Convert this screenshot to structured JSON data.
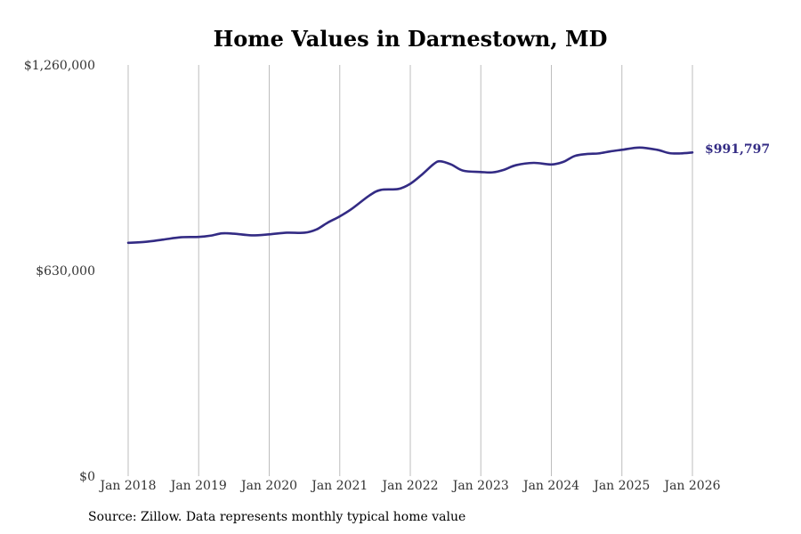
{
  "chart_data": {
    "type": "line",
    "title": "Home Values in Darnestown, MD",
    "xlabel": "",
    "ylabel": "",
    "ylim": [
      0,
      1260000
    ],
    "y_ticks": [
      {
        "value": 0,
        "label": "$0"
      },
      {
        "value": 630000,
        "label": "$630,000"
      },
      {
        "value": 1260000,
        "label": "$1,260,000"
      }
    ],
    "x_ticks": [
      {
        "value": 2018.0,
        "label": "Jan 2018"
      },
      {
        "value": 2019.0,
        "label": "Jan 2019"
      },
      {
        "value": 2020.0,
        "label": "Jan 2020"
      },
      {
        "value": 2021.0,
        "label": "Jan 2021"
      },
      {
        "value": 2022.0,
        "label": "Jan 2022"
      },
      {
        "value": 2023.0,
        "label": "Jan 2023"
      },
      {
        "value": 2024.0,
        "label": "Jan 2024"
      },
      {
        "value": 2025.0,
        "label": "Jan 2025"
      },
      {
        "value": 2026.0,
        "label": "Jan 2026"
      }
    ],
    "xlim": [
      2018.0,
      2026.0
    ],
    "grid": "vertical",
    "series": [
      {
        "name": "Typical home value",
        "color": "#332b84",
        "points": [
          [
            2018.0,
            715000
          ],
          [
            2018.25,
            718000
          ],
          [
            2018.5,
            725000
          ],
          [
            2018.75,
            732000
          ],
          [
            2019.0,
            733000
          ],
          [
            2019.17,
            737000
          ],
          [
            2019.33,
            744000
          ],
          [
            2019.5,
            743000
          ],
          [
            2019.75,
            738000
          ],
          [
            2020.0,
            741000
          ],
          [
            2020.25,
            746000
          ],
          [
            2020.5,
            746000
          ],
          [
            2020.67,
            756000
          ],
          [
            2020.83,
            777000
          ],
          [
            2021.0,
            796000
          ],
          [
            2021.17,
            819000
          ],
          [
            2021.42,
            860000
          ],
          [
            2021.58,
            877000
          ],
          [
            2021.83,
            880000
          ],
          [
            2022.0,
            896000
          ],
          [
            2022.17,
            925000
          ],
          [
            2022.33,
            956000
          ],
          [
            2022.42,
            965000
          ],
          [
            2022.58,
            955000
          ],
          [
            2022.75,
            936000
          ],
          [
            2023.0,
            932000
          ],
          [
            2023.17,
            931000
          ],
          [
            2023.33,
            939000
          ],
          [
            2023.5,
            953000
          ],
          [
            2023.75,
            960000
          ],
          [
            2024.0,
            955000
          ],
          [
            2024.17,
            963000
          ],
          [
            2024.33,
            981000
          ],
          [
            2024.5,
            987000
          ],
          [
            2024.67,
            989000
          ],
          [
            2024.83,
            995000
          ],
          [
            2025.0,
            1000000
          ],
          [
            2025.25,
            1007000
          ],
          [
            2025.5,
            1000000
          ],
          [
            2025.67,
            990000
          ],
          [
            2025.83,
            989000
          ],
          [
            2026.0,
            991797
          ]
        ],
        "end_label": "$991,797"
      }
    ]
  },
  "footer": {
    "source": "Source: Zillow. Data represents monthly typical home value"
  }
}
